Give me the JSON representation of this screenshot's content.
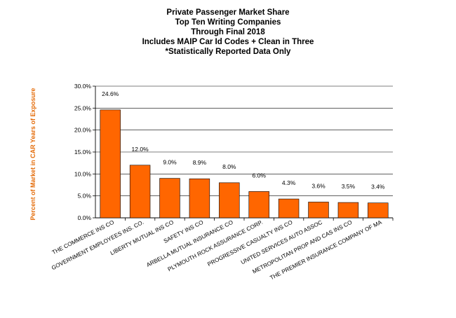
{
  "chart_data": {
    "type": "bar",
    "title": [
      "Private Passenger Market Share",
      "Top Ten Writing Companies",
      "Through Final 2018",
      "Includes MAIP Car Id Codes + Clean in Three",
      "*Statistically Reported Data Only"
    ],
    "xlabel": "",
    "ylabel": "Percent of Market in CAR Years of Exposure",
    "ylim": [
      0,
      30
    ],
    "yticks": [
      0,
      5,
      10,
      15,
      20,
      25,
      30
    ],
    "ytick_labels": [
      "0.0%",
      "5.0%",
      "10.0%",
      "15.0%",
      "20.0%",
      "25.0%",
      "30.0%"
    ],
    "grid": true,
    "categories": [
      "THE COMMERCE INS CO",
      "GOVERNMENT EMPLOYEES INS. CO.",
      "LIBERTY MUTUAL INS CO",
      "SAFETY INS CO",
      "ARBELLA MUTUAL INSURANCE CO",
      "PLYMOUTH ROCK ASSURANCE CORP.",
      "PROGRESSIVE CASUALTY INS CO",
      "UNITED SERVICES AUTO ASSOC",
      "METROPOLITAN PROP AND CAS INS CO",
      "THE PREMIER INSURANCE COMPANY OF MA"
    ],
    "values": [
      24.6,
      12.0,
      9.0,
      8.9,
      8.0,
      6.0,
      4.3,
      3.6,
      3.5,
      3.4
    ],
    "data_labels": [
      "24.6%",
      "12.0%",
      "9.0%",
      "8.9%",
      "8.0%",
      "6.0%",
      "4.3%",
      "3.6%",
      "3.5%",
      "3.4%"
    ],
    "bar_color": "#FF6600",
    "ylabel_color": "#E46C0A"
  }
}
